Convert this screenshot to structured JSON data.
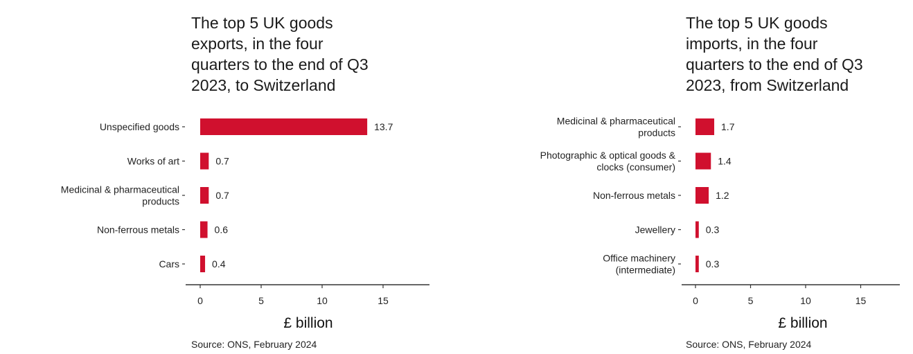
{
  "chart_data": [
    {
      "type": "bar",
      "orientation": "horizontal",
      "title": "The top 5 UK goods\nexports, in the four\nquarters to the end of Q3\n2023, to Switzerland",
      "categories": [
        [
          "Unspecified goods"
        ],
        [
          "Works of art"
        ],
        [
          "Medicinal & pharmaceutical",
          "products"
        ],
        [
          "Non-ferrous metals"
        ],
        [
          "Cars"
        ]
      ],
      "values": [
        13.7,
        0.7,
        0.7,
        0.6,
        0.4
      ],
      "value_labels": [
        "13.7",
        "0.7",
        "0.7",
        "0.6",
        "0.4"
      ],
      "xlabel": "£ billion",
      "xticks": [
        "0",
        "5",
        "10",
        "15"
      ],
      "xlim": [
        0,
        18.7
      ],
      "source": "Source: ONS, February 2024",
      "bar_color": "#d0102e"
    },
    {
      "type": "bar",
      "orientation": "horizontal",
      "title": "The top 5 UK goods\nimports, in the four\nquarters to the end of Q3\n2023, from Switzerland",
      "categories": [
        [
          "Medicinal & pharmaceutical",
          "products"
        ],
        [
          "Photographic & optical goods &",
          "clocks (consumer)"
        ],
        [
          "Non-ferrous metals"
        ],
        [
          "Jewellery"
        ],
        [
          "Office machinery",
          "(intermediate)"
        ]
      ],
      "values": [
        1.7,
        1.4,
        1.2,
        0.3,
        0.3
      ],
      "value_labels": [
        "1.7",
        "1.4",
        "1.2",
        "0.3",
        "0.3"
      ],
      "xlabel": "£ billion",
      "xticks": [
        "0",
        "5",
        "10",
        "15"
      ],
      "xlim": [
        0,
        18.7
      ],
      "source": "Source: ONS, February 2024",
      "bar_color": "#d0102e"
    }
  ]
}
